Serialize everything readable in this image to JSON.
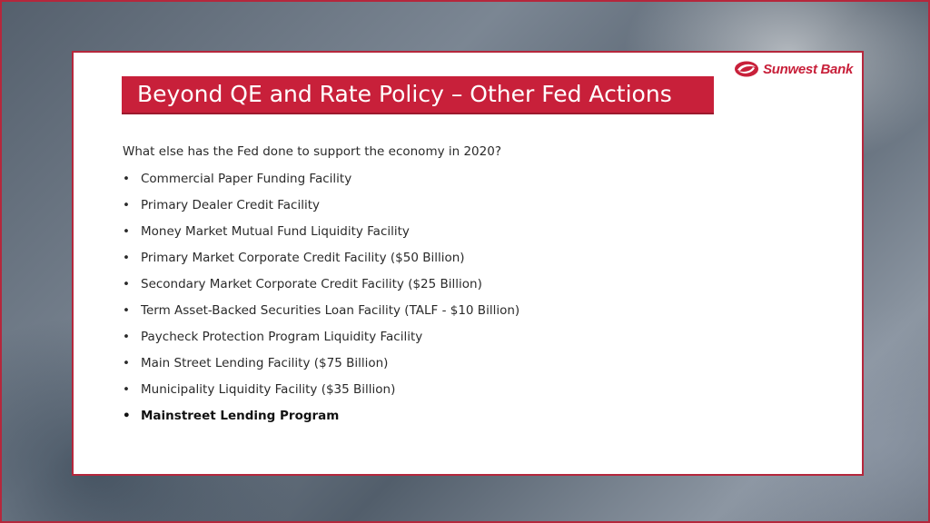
{
  "slide": {
    "title": "Beyond QE and Rate Policy – Other Fed Actions",
    "logo": {
      "text": "Sunwest Bank",
      "icon": "sunwest-swirl-logo",
      "color": "#c8203a"
    },
    "intro": "What else has the Fed done to support the economy in 2020?",
    "bullet_glyph": "•",
    "bullets": [
      "Commercial Paper Funding Facility",
      "Primary Dealer Credit Facility",
      "Money Market Mutual Fund Liquidity Facility",
      "Primary Market Corporate Credit Facility ($50 Billion)",
      "Secondary Market Corporate Credit Facility ($25 Billion)",
      "Term Asset-Backed Securities Loan Facility (TALF - $10 Billion)",
      "Paycheck Protection Program Liquidity Facility",
      "Main Street Lending Facility ($75 Billion)",
      "Municipality Liquidity Facility ($35 Billion)",
      "Mainstreet Lending Program"
    ],
    "colors": {
      "accent": "#c8203a",
      "frame": "#b5273c",
      "text": "#2a2a2a"
    }
  }
}
